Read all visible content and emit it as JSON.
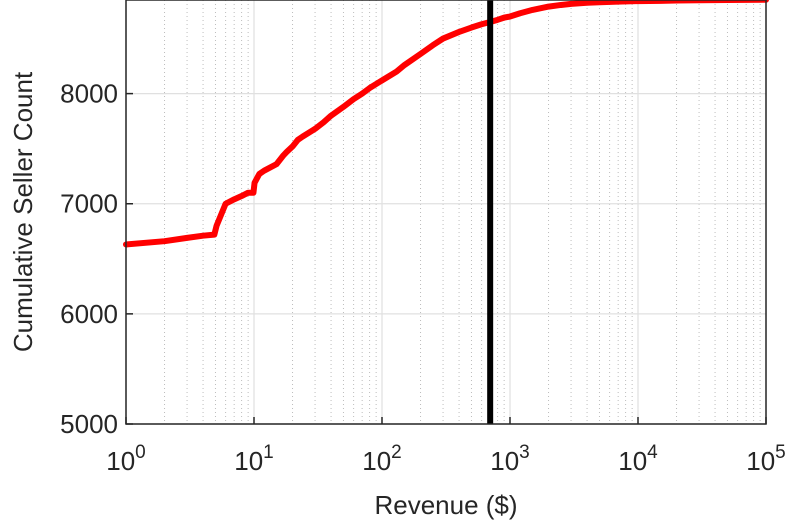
{
  "chart_data": {
    "type": "line",
    "title": "",
    "xlabel": "Revenue ($)",
    "ylabel": "Cumulative Seller Count",
    "x_scale": "log",
    "xlim": [
      1,
      100000
    ],
    "ylim": [
      5000,
      8850
    ],
    "x_ticks": [
      {
        "value": 1,
        "base": "10",
        "exp": "0"
      },
      {
        "value": 10,
        "base": "10",
        "exp": "1"
      },
      {
        "value": 100,
        "base": "10",
        "exp": "2"
      },
      {
        "value": 1000,
        "base": "10",
        "exp": "3"
      },
      {
        "value": 10000,
        "base": "10",
        "exp": "4"
      },
      {
        "value": 100000,
        "base": "10",
        "exp": "5"
      }
    ],
    "y_ticks": [
      {
        "value": 5000,
        "label": "5000"
      },
      {
        "value": 6000,
        "label": "6000"
      },
      {
        "value": 7000,
        "label": "7000"
      },
      {
        "value": 8000,
        "label": "8000"
      }
    ],
    "grid": {
      "major": true,
      "minor_x": true
    },
    "series": [
      {
        "color": "#ff0000",
        "x": [
          1,
          2,
          3,
          4,
          4.9,
          5.1,
          6,
          7,
          8,
          9,
          9.9,
          10.1,
          11,
          12,
          15,
          17,
          18,
          20,
          22,
          24,
          30,
          35,
          40,
          50,
          60,
          70,
          80,
          100,
          130,
          150,
          200,
          250,
          300,
          400,
          500,
          600,
          700,
          800,
          900,
          1000,
          1200,
          1500,
          2000,
          2500,
          3000,
          4000,
          5000,
          7000,
          10000,
          15000,
          20000,
          30000,
          50000,
          100000
        ],
        "y": [
          6630,
          6660,
          6690,
          6710,
          6720,
          6800,
          7000,
          7040,
          7070,
          7100,
          7100,
          7190,
          7270,
          7300,
          7360,
          7440,
          7470,
          7520,
          7580,
          7610,
          7680,
          7740,
          7800,
          7880,
          7950,
          8000,
          8050,
          8120,
          8200,
          8260,
          8360,
          8440,
          8500,
          8560,
          8600,
          8630,
          8650,
          8670,
          8690,
          8700,
          8730,
          8760,
          8790,
          8805,
          8815,
          8825,
          8830,
          8835,
          8840,
          8842,
          8845,
          8848,
          8850,
          8852
        ]
      }
    ],
    "vertical_line": {
      "x": 700,
      "color": "#000000"
    }
  }
}
